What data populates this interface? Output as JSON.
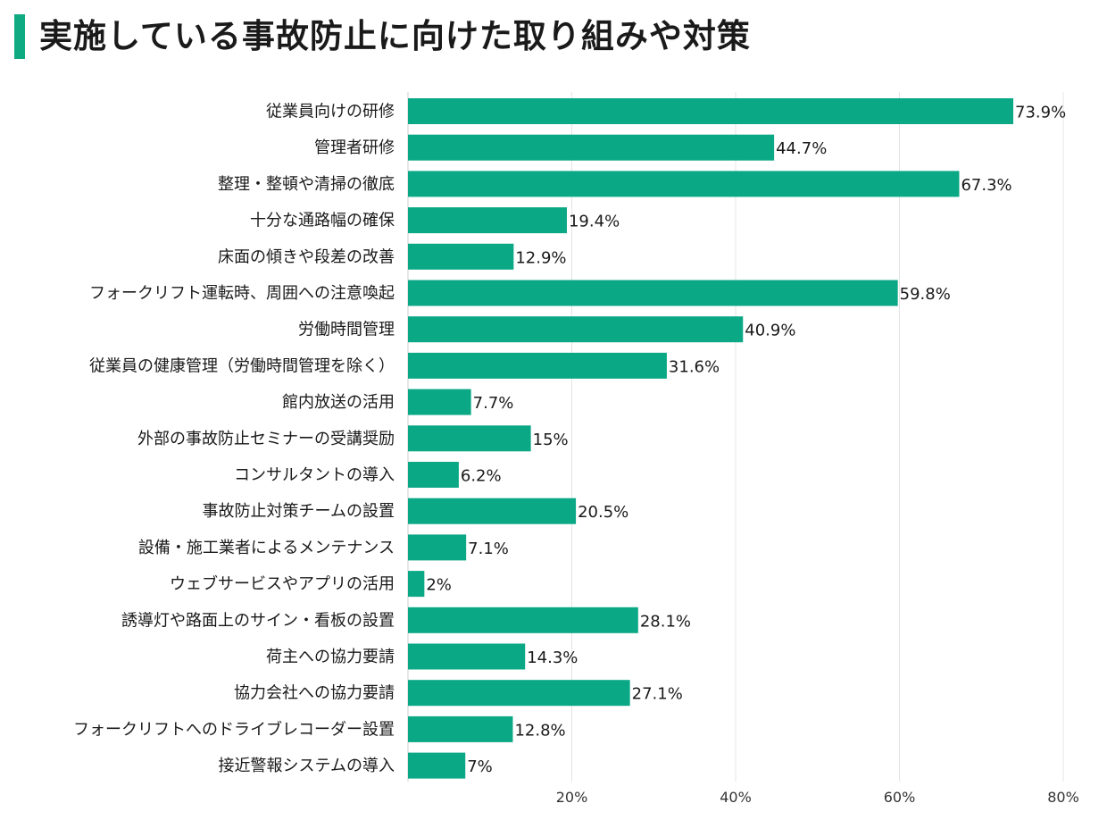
{
  "title": "実施している事故防止に向けた取り組みや対策",
  "colors": {
    "accent": "#0fa982",
    "bar": "#0ba885",
    "grid": "#e4e4e4"
  },
  "chart_data": {
    "type": "bar",
    "orientation": "horizontal",
    "title": "実施している事故防止に向けた取り組みや対策",
    "categories": [
      "従業員向けの研修",
      "管理者研修",
      "整理・整頓や清掃の徹底",
      "十分な通路幅の確保",
      "床面の傾きや段差の改善",
      "フォークリフト運転時、周囲への注意喚起",
      "労働時間管理",
      "従業員の健康管理（労働時間管理を除く）",
      "館内放送の活用",
      "外部の事故防止セミナーの受講奨励",
      "コンサルタントの導入",
      "事故防止対策チームの設置",
      "設備・施工業者によるメンテナンス",
      "ウェブサービスやアプリの活用",
      "誘導灯や路面上のサイン・看板の設置",
      "荷主への協力要請",
      "協力会社への協力要請",
      "フォークリフトへのドライブレコーダー設置",
      "接近警報システムの導入"
    ],
    "values": [
      73.9,
      44.7,
      67.3,
      19.4,
      12.9,
      59.8,
      40.9,
      31.6,
      7.7,
      15,
      6.2,
      20.5,
      7.1,
      2,
      28.1,
      14.3,
      27.1,
      12.8,
      7
    ],
    "value_labels": [
      "73.9%",
      "44.7%",
      "67.3%",
      "19.4%",
      "12.9%",
      "59.8%",
      "40.9%",
      "31.6%",
      "7.7%",
      "15%",
      "6.2%",
      "20.5%",
      "7.1%",
      "2%",
      "28.1%",
      "14.3%",
      "27.1%",
      "12.8%",
      "7%"
    ],
    "xlim": [
      0,
      80
    ],
    "xticks": [
      20,
      40,
      60,
      80
    ],
    "xtick_labels": [
      "20%",
      "40%",
      "60%",
      "80%"
    ],
    "grid": true
  }
}
